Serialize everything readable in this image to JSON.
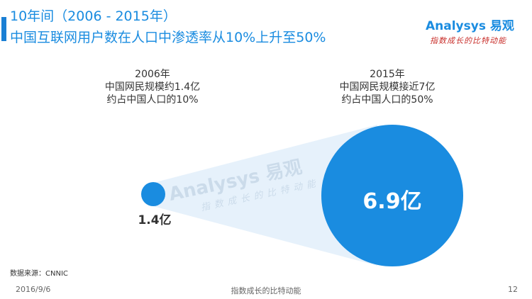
{
  "header": {
    "title_line1": "10年间（2006 - 2015年）",
    "title_line2": "中国互联网用户数在人口中渗透率从10%上升至50%"
  },
  "logo": {
    "main": "Analysys 易观",
    "tagline": "指数成长的比特动能"
  },
  "diagram": {
    "left": {
      "year": "2006年",
      "line2": "中国网民规模约1.4亿",
      "line3": "约占中国人口的10%",
      "value_label": "1.4亿",
      "penetration_percent": 10
    },
    "right": {
      "year": "2015年",
      "line2": "中国网民规模接近7亿",
      "line3": "约占中国人口的50%",
      "value_label": "6.9亿",
      "penetration_percent": 50
    },
    "colors": {
      "circle": "#1a8ce0",
      "cone": "#e6f1fb"
    }
  },
  "source": "数据来源：CNNIC",
  "footer": {
    "date": "2016/9/6",
    "tagline": "指数成长的比特动能",
    "page": "12"
  }
}
